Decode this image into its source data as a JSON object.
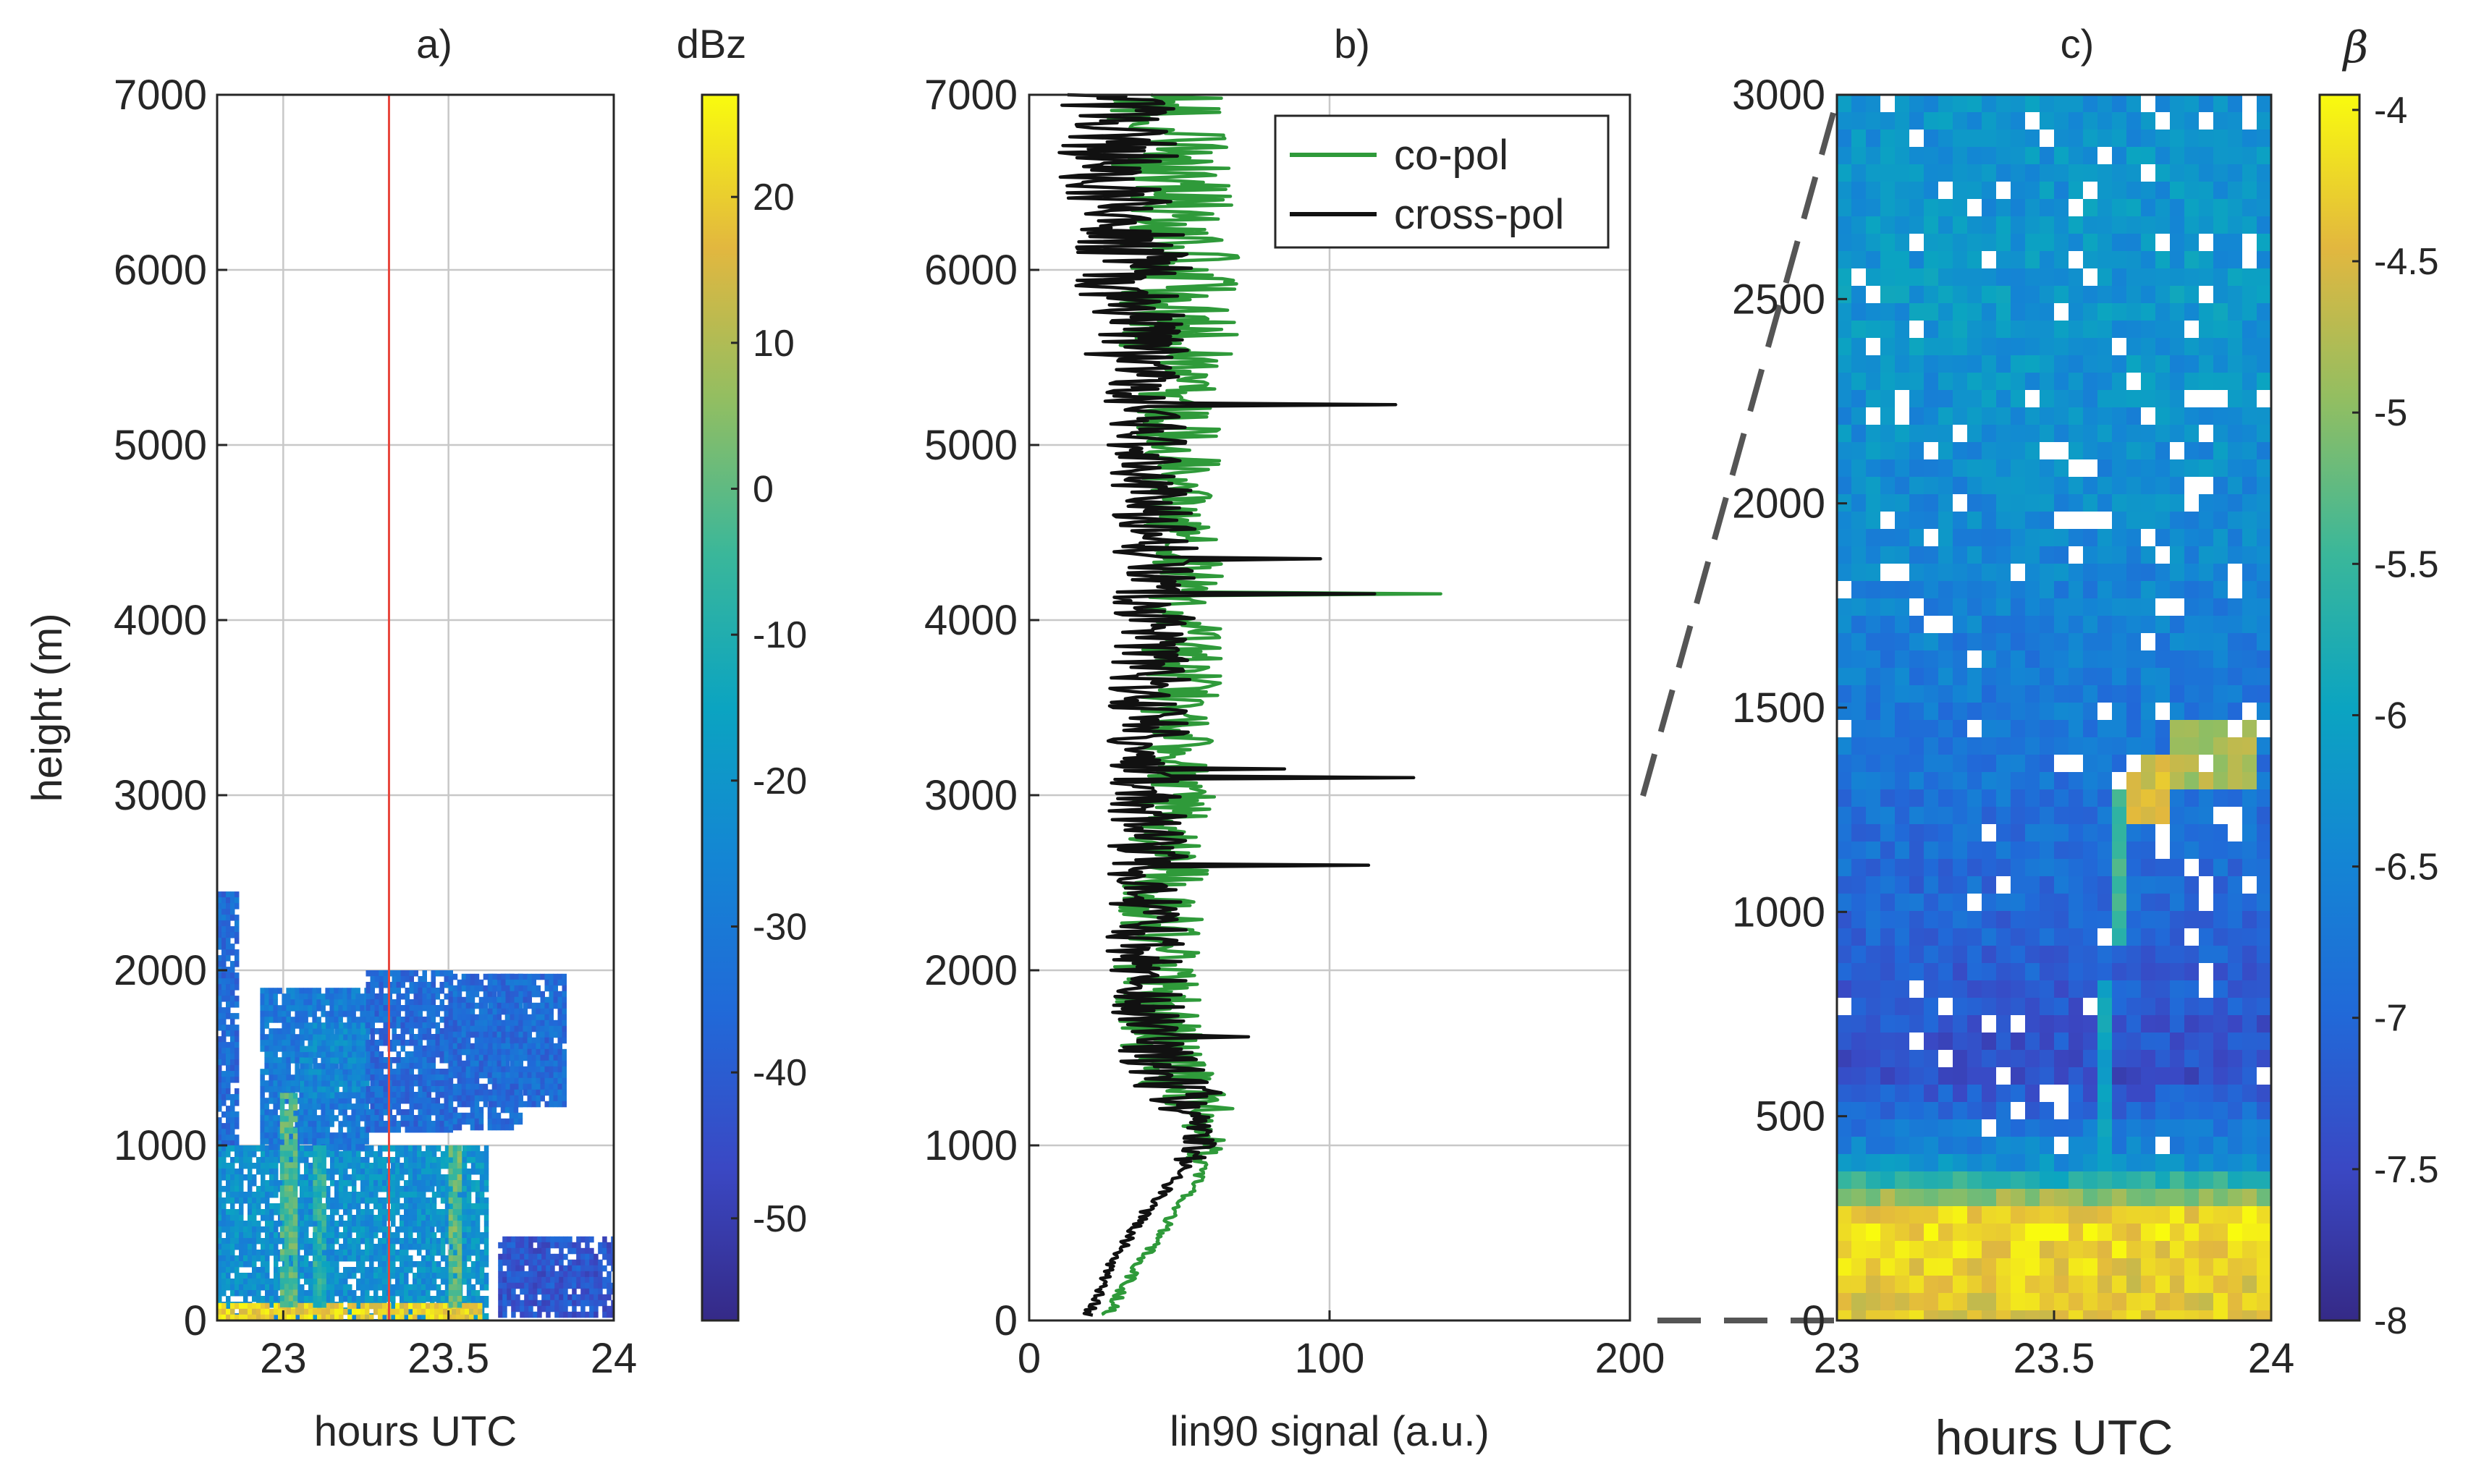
{
  "chart_data": [
    {
      "panel": "a)",
      "type": "heatmap",
      "title": "a)",
      "xlabel": "hours UTC",
      "ylabel": "height (m)",
      "xlim": [
        22.8,
        24.0
      ],
      "ylim": [
        0,
        7000
      ],
      "xticks": [
        "23",
        "23.5",
        "24"
      ],
      "xtick_values": [
        23,
        23.5,
        24
      ],
      "yticks": [
        "0",
        "1000",
        "2000",
        "3000",
        "4000",
        "5000",
        "6000",
        "7000"
      ],
      "ytick_values": [
        0,
        1000,
        2000,
        3000,
        4000,
        5000,
        6000,
        7000
      ],
      "grid": true,
      "vline_x": 23.32,
      "vline_color": "#e8453c",
      "colorbar": {
        "label": "dBz",
        "range": [
          -57,
          27
        ],
        "ticks": [
          "20",
          "10",
          "0",
          "-10",
          "-20",
          "-30",
          "-40",
          "-50"
        ],
        "tick_values": [
          20,
          10,
          0,
          -10,
          -20,
          -30,
          -40,
          -50
        ]
      },
      "echo_regions": [
        {
          "x": [
            22.8,
            22.86
          ],
          "y": [
            1000,
            2450
          ],
          "dbz": -35
        },
        {
          "x": [
            22.8,
            23.45
          ],
          "y": [
            0,
            1000
          ],
          "dbz": -22
        },
        {
          "x": [
            22.93,
            23.25
          ],
          "y": [
            1000,
            1900
          ],
          "dbz": -30
        },
        {
          "x": [
            23.05,
            23.25
          ],
          "y": [
            1300,
            1700
          ],
          "dbz": -25
        },
        {
          "x": [
            23.25,
            23.5
          ],
          "y": [
            1100,
            2000
          ],
          "dbz": -35
        },
        {
          "x": [
            23.5,
            23.72
          ],
          "y": [
            1100,
            1980
          ],
          "dbz": -35
        },
        {
          "x": [
            23.62,
            23.85
          ],
          "y": [
            1250,
            1980
          ],
          "dbz": -35
        },
        {
          "x": [
            23.45,
            23.62
          ],
          "y": [
            0,
            1000
          ],
          "dbz": -20
        },
        {
          "x": [
            23.65,
            24.0
          ],
          "y": [
            40,
            480
          ],
          "dbz": -42
        },
        {
          "x": [
            22.8,
            23.6
          ],
          "y": [
            30,
            100
          ],
          "dbz": 20
        },
        {
          "x": [
            22.99,
            23.03
          ],
          "y": [
            100,
            1300
          ],
          "dbz": -2
        },
        {
          "x": [
            23.09,
            23.12
          ],
          "y": [
            100,
            1000
          ],
          "dbz": -8
        },
        {
          "x": [
            23.5,
            23.53
          ],
          "y": [
            100,
            1000
          ],
          "dbz": 0
        }
      ]
    },
    {
      "panel": "b)",
      "type": "line",
      "title": "b)",
      "xlabel": "lin90 signal (a.u.)",
      "ylabel": "",
      "xlim": [
        0,
        200
      ],
      "ylim": [
        0,
        7000
      ],
      "xticks": [
        "0",
        "100",
        "200"
      ],
      "xtick_values": [
        0,
        100,
        200
      ],
      "yticks": [
        "0",
        "1000",
        "2000",
        "3000",
        "4000",
        "5000",
        "6000",
        "7000"
      ],
      "ytick_values": [
        0,
        1000,
        2000,
        3000,
        4000,
        5000,
        6000,
        7000
      ],
      "grid": true,
      "legend_position": "top-right",
      "series": [
        {
          "name": "co-pol",
          "color": "#2f9a3a",
          "height_m": [
            0,
            200,
            400,
            600,
            800,
            1000,
            1200,
            1500,
            2000,
            2500,
            3000,
            3500,
            4000,
            4500,
            5000,
            5500,
            6000,
            6500,
            7000
          ],
          "signal": [
            25,
            32,
            40,
            48,
            56,
            60,
            55,
            45,
            42,
            45,
            48,
            50,
            52,
            52,
            50,
            50,
            50,
            48,
            45
          ],
          "spikes": [
            {
              "height_m": 4150,
              "signal": 137
            }
          ]
        },
        {
          "name": "cross-pol",
          "color": "#111111",
          "height_m": [
            0,
            200,
            400,
            600,
            800,
            1000,
            1200,
            1500,
            2000,
            2500,
            3000,
            3500,
            4000,
            4500,
            5000,
            5500,
            6000,
            6500,
            7000
          ],
          "signal": [
            19,
            24,
            30,
            38,
            48,
            58,
            55,
            42,
            38,
            40,
            40,
            40,
            42,
            42,
            40,
            38,
            35,
            30,
            30
          ],
          "spikes": [
            {
              "height_m": 5230,
              "signal": 122
            },
            {
              "height_m": 4350,
              "signal": 97
            },
            {
              "height_m": 4150,
              "signal": 115
            },
            {
              "height_m": 3150,
              "signal": 85
            },
            {
              "height_m": 3100,
              "signal": 128
            },
            {
              "height_m": 2600,
              "signal": 113
            },
            {
              "height_m": 1620,
              "signal": 73
            }
          ]
        }
      ]
    },
    {
      "panel": "c)",
      "type": "heatmap",
      "title": "c)",
      "xlabel": "hours UTC",
      "ylabel": "",
      "xlim": [
        23.0,
        24.0
      ],
      "ylim": [
        0,
        3000
      ],
      "xticks": [
        "23",
        "23.5",
        "24"
      ],
      "xtick_values": [
        23,
        23.5,
        24
      ],
      "yticks": [
        "0",
        "500",
        "1000",
        "1500",
        "2000",
        "2500",
        "3000"
      ],
      "ytick_values": [
        0,
        500,
        1000,
        1500,
        2000,
        2500,
        3000
      ],
      "colorbar": {
        "label": "β",
        "range": [
          -8,
          -3.95
        ],
        "ticks": [
          "-4",
          "-4.5",
          "-5",
          "-5.5",
          "-6",
          "-6.5",
          "-7",
          "-7.5",
          "-8"
        ],
        "tick_values": [
          -4,
          -4.5,
          -5,
          -5.5,
          -6,
          -6.5,
          -7,
          -7.5,
          -8
        ]
      },
      "background_profile": [
        {
          "height_m": 0,
          "beta": -4.4
        },
        {
          "height_m": 150,
          "beta": -4.3
        },
        {
          "height_m": 250,
          "beta": -4.1
        },
        {
          "height_m": 380,
          "beta": -6.3
        },
        {
          "height_m": 600,
          "beta": -7.4
        },
        {
          "height_m": 1000,
          "beta": -7.0
        },
        {
          "height_m": 1500,
          "beta": -6.7
        },
        {
          "height_m": 2000,
          "beta": -6.4
        },
        {
          "height_m": 2500,
          "beta": -6.2
        },
        {
          "height_m": 3000,
          "beta": -6.3
        }
      ],
      "features": [
        {
          "x": [
            23.66,
            23.78
          ],
          "y": [
            1200,
            1400
          ],
          "beta": -4.5
        },
        {
          "x": [
            23.78,
            23.95
          ],
          "y": [
            1300,
            1450
          ],
          "beta": -4.8
        },
        {
          "x": [
            23.64,
            23.67
          ],
          "y": [
            900,
            1300
          ],
          "beta": -5.5
        },
        {
          "x": [
            23.6,
            23.63
          ],
          "y": [
            350,
            850
          ],
          "beta": -6.0
        }
      ],
      "zoom_lines": {
        "from_panel": "b)",
        "height_range_m": [
          0,
          3000
        ],
        "style": "dashed",
        "color": "#555555"
      }
    }
  ],
  "legend": {
    "co_pol": "co-pol",
    "cross_pol": "cross-pol"
  },
  "labels": {
    "panel_a": "a)",
    "panel_b": "b)",
    "panel_c": "c)",
    "cb_a": "dBz",
    "cb_c": "β",
    "ylabel_a": "height (m)",
    "xlabel_a": "hours UTC",
    "xlabel_b": "lin90 signal (a.u.)",
    "xlabel_c": "hours UTC"
  }
}
